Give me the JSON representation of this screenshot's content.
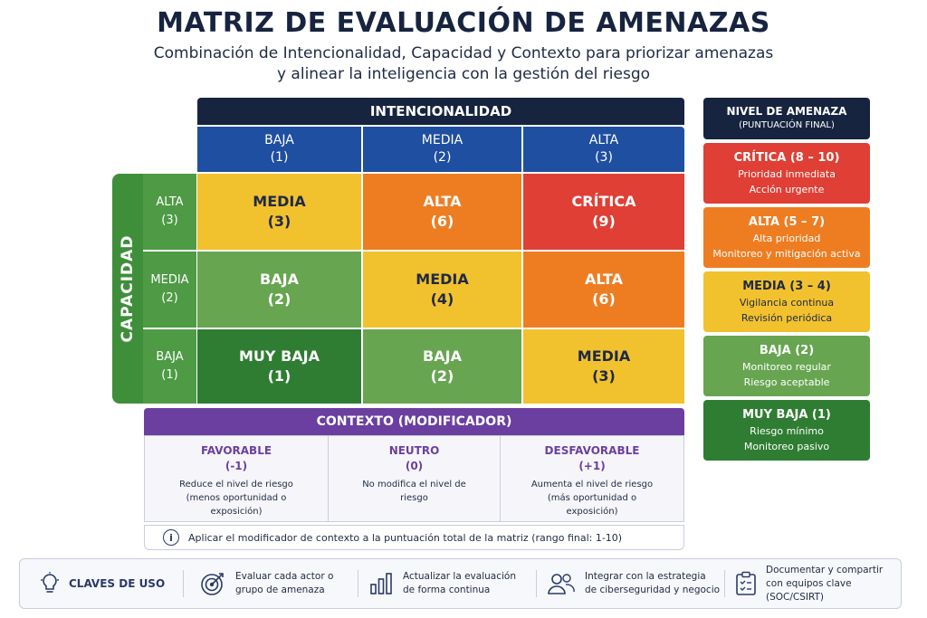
{
  "title": "MATRIZ DE EVALUACIÓN DE AMENAZAS",
  "subtitle_line1": "Combinación de Intencionalidad, Capacidad y Contexto para priorizar amenazas",
  "subtitle_line2": "y alinear la inteligencia con la gestión del riesgo",
  "matrix": {
    "intent_header": "INTENCIONALIDAD",
    "columns": [
      {
        "label": "BAJA",
        "value": "(1)"
      },
      {
        "label": "MEDIA",
        "value": "(2)"
      },
      {
        "label": "ALTA",
        "value": "(3)"
      }
    ],
    "capacity_header": "CAPACIDAD",
    "rows": [
      {
        "label": "ALTA",
        "value": "(3)"
      },
      {
        "label": "MEDIA",
        "value": "(2)"
      },
      {
        "label": "BAJA",
        "value": "(1)"
      }
    ],
    "cells": [
      [
        {
          "level": "MEDIA",
          "score": "(3)",
          "color": "#f2c12e"
        },
        {
          "level": "ALTA",
          "score": "(6)",
          "color": "#ee7d22"
        },
        {
          "level": "CRÍTICA",
          "score": "(9)",
          "color": "#df3f35"
        }
      ],
      [
        {
          "level": "BAJA",
          "score": "(2)",
          "color": "#67a551"
        },
        {
          "level": "MEDIA",
          "score": "(4)",
          "color": "#f2c12e"
        },
        {
          "level": "ALTA",
          "score": "(6)",
          "color": "#ee7d22"
        }
      ],
      [
        {
          "level": "MUY BAJA",
          "score": "(1)",
          "color": "#2f7d32"
        },
        {
          "level": "BAJA",
          "score": "(2)",
          "color": "#67a551"
        },
        {
          "level": "MEDIA",
          "score": "(3)",
          "color": "#f2c12e"
        }
      ]
    ]
  },
  "context": {
    "header": "CONTEXTO (MODIFICADOR)",
    "items": [
      {
        "name": "FAVORABLE",
        "value": "(-1)",
        "desc": "Reduce el nivel de riesgo (menos oportunidad o exposición)"
      },
      {
        "name": "NEUTRO",
        "value": "(0)",
        "desc": "No modifica el nivel de riesgo"
      },
      {
        "name": "DESFAVORABLE",
        "value": "(+1)",
        "desc": "Aumenta el nivel de riesgo (más oportunidad o exposición)"
      }
    ],
    "note": "Aplicar el modificador de contexto a la puntuación total de la matriz (rango final: 1-10)",
    "info_icon": "info-icon"
  },
  "legend": {
    "header": "NIVEL DE AMENAZA",
    "subheader": "(PUNTUACIÓN FINAL)",
    "levels": [
      {
        "title": "CRÍTICA (8 – 10)",
        "line1": "Prioridad inmediata",
        "line2": "Acción urgente",
        "color": "#df3f35"
      },
      {
        "title": "ALTA (5 – 7)",
        "line1": "Alta prioridad",
        "line2": "Monitoreo y mitigación activa",
        "color": "#ee7d22"
      },
      {
        "title": "MEDIA (3 – 4)",
        "line1": "Vigilancia continua",
        "line2": "Revisión periódica",
        "color": "#f2c12e"
      },
      {
        "title": "BAJA (2)",
        "line1": "Monitoreo regular",
        "line2": "Riesgo aceptable",
        "color": "#67a551"
      },
      {
        "title": "MUY BAJA (1)",
        "line1": "Riesgo mínimo",
        "line2": "Monitoreo pasivo",
        "color": "#2f7d32"
      }
    ]
  },
  "footer": {
    "keys_label": "CLAVES DE USO",
    "items": [
      {
        "icon": "target-icon",
        "line1": "Evaluar cada actor o",
        "line2": "grupo de amenaza"
      },
      {
        "icon": "bar-chart-icon",
        "line1": "Actualizar la evaluación",
        "line2": "de forma continua"
      },
      {
        "icon": "users-icon",
        "line1": "Integrar con la estrategia",
        "line2": "de ciberseguridad y negocio"
      },
      {
        "icon": "clipboard-icon",
        "line1": "Documentar y compartir",
        "line2": "con equipos clave (SOC/CSIRT)"
      }
    ]
  }
}
